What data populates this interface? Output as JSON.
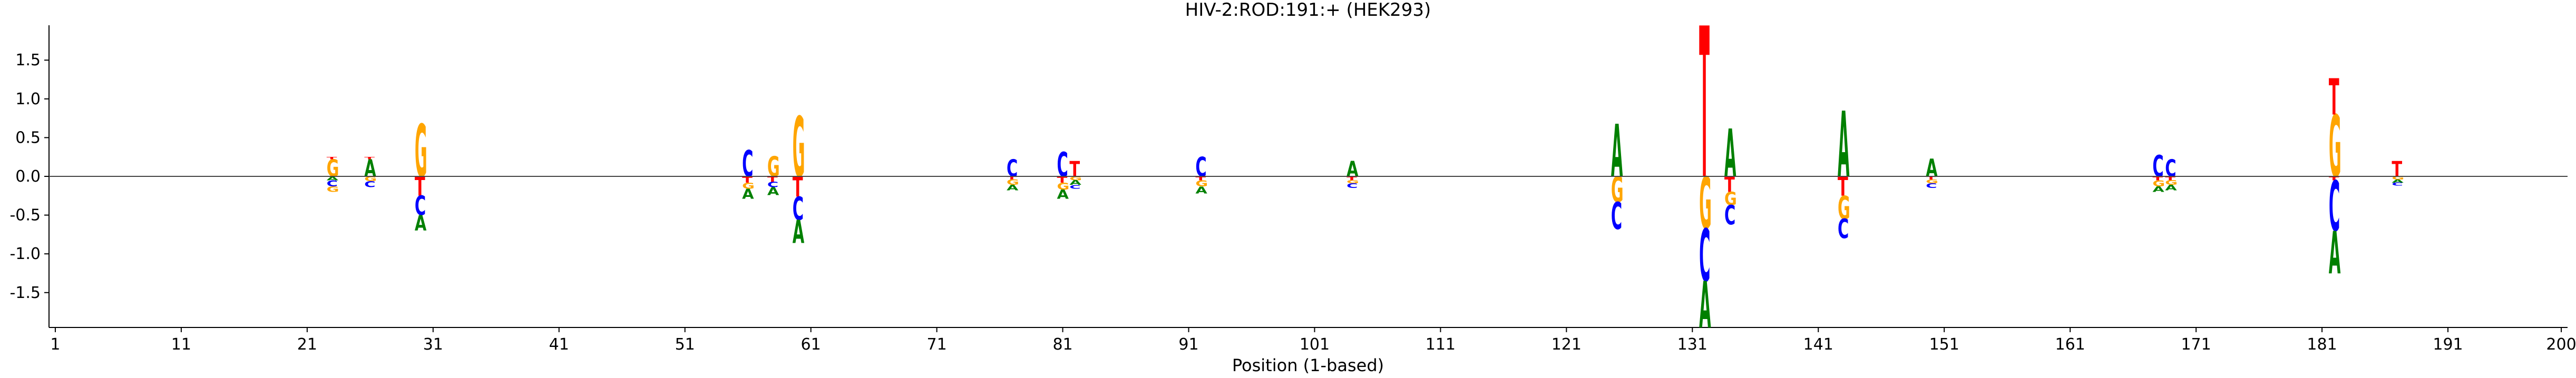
{
  "chart_data": {
    "type": "logo",
    "title": "HIV-2:ROD:191:+  (HEK293)",
    "xlabel": "Position (1-based)",
    "ylabel": "",
    "xlim": [
      0.5,
      200.5
    ],
    "ylim": [
      -1.95,
      1.95
    ],
    "xticks": [
      1,
      11,
      21,
      31,
      41,
      51,
      61,
      71,
      81,
      91,
      101,
      111,
      121,
      131,
      141,
      151,
      161,
      171,
      181,
      191,
      200
    ],
    "yticks": [
      -1.5,
      -1.0,
      -0.5,
      0.0,
      0.5,
      1.0,
      1.5
    ],
    "zero_line": true,
    "colors": {
      "A": "#008000",
      "C": "#0000ff",
      "G": "#ffa500",
      "T": "#ff0000"
    },
    "positions": [
      {
        "x": 23,
        "stack": [
          [
            "G",
            0.22
          ],
          [
            "T",
            0.03
          ],
          [
            "A",
            -0.05
          ],
          [
            "C",
            -0.08
          ],
          [
            "G",
            -0.07
          ]
        ]
      },
      {
        "x": 26,
        "stack": [
          [
            "A",
            0.22
          ],
          [
            "T",
            0.03
          ],
          [
            "G",
            -0.06
          ],
          [
            "C",
            -0.08
          ]
        ]
      },
      {
        "x": 30,
        "stack": [
          [
            "G",
            0.68
          ],
          [
            "T",
            -0.25
          ],
          [
            "C",
            -0.25
          ],
          [
            "A",
            -0.2
          ]
        ]
      },
      {
        "x": 56,
        "stack": [
          [
            "C",
            0.34
          ],
          [
            "T",
            -0.08
          ],
          [
            "G",
            -0.08
          ],
          [
            "A",
            -0.13
          ]
        ]
      },
      {
        "x": 58,
        "stack": [
          [
            "G",
            0.26
          ],
          [
            "T",
            -0.07
          ],
          [
            "C",
            -0.07
          ],
          [
            "A",
            -0.1
          ]
        ]
      },
      {
        "x": 60,
        "stack": [
          [
            "G",
            0.78
          ],
          [
            "T",
            -0.26
          ],
          [
            "C",
            -0.3
          ],
          [
            "A",
            -0.3
          ]
        ]
      },
      {
        "x": 77,
        "stack": [
          [
            "C",
            0.22
          ],
          [
            "T",
            -0.04
          ],
          [
            "G",
            -0.07
          ],
          [
            "A",
            -0.07
          ]
        ]
      },
      {
        "x": 81,
        "stack": [
          [
            "C",
            0.32
          ],
          [
            "T",
            -0.08
          ],
          [
            "G",
            -0.09
          ],
          [
            "A",
            -0.12
          ]
        ]
      },
      {
        "x": 82,
        "stack": [
          [
            "T",
            0.2
          ],
          [
            "G",
            -0.05
          ],
          [
            "A",
            -0.06
          ],
          [
            "C",
            -0.05
          ]
        ]
      },
      {
        "x": 92,
        "stack": [
          [
            "C",
            0.25
          ],
          [
            "T",
            -0.05
          ],
          [
            "G",
            -0.08
          ],
          [
            "A",
            -0.09
          ]
        ]
      },
      {
        "x": 104,
        "stack": [
          [
            "A",
            0.2
          ],
          [
            "T",
            -0.05
          ],
          [
            "G",
            -0.04
          ],
          [
            "C",
            -0.06
          ]
        ]
      },
      {
        "x": 125,
        "stack": [
          [
            "A",
            0.68
          ],
          [
            "G",
            -0.33
          ],
          [
            "C",
            -0.35
          ]
        ]
      },
      {
        "x": 132,
        "stack": [
          [
            "T",
            1.95
          ],
          [
            "G",
            -0.67
          ],
          [
            "C",
            -0.68
          ],
          [
            "A",
            -0.6
          ]
        ]
      },
      {
        "x": 134,
        "stack": [
          [
            "A",
            0.62
          ],
          [
            "T",
            -0.2
          ],
          [
            "G",
            -0.17
          ],
          [
            "C",
            -0.25
          ]
        ]
      },
      {
        "x": 143,
        "stack": [
          [
            "A",
            0.85
          ],
          [
            "T",
            -0.25
          ],
          [
            "G",
            -0.3
          ],
          [
            "C",
            -0.25
          ]
        ]
      },
      {
        "x": 150,
        "stack": [
          [
            "A",
            0.23
          ],
          [
            "T",
            -0.04
          ],
          [
            "G",
            -0.05
          ],
          [
            "C",
            -0.06
          ]
        ]
      },
      {
        "x": 168,
        "stack": [
          [
            "C",
            0.28
          ],
          [
            "T",
            -0.05
          ],
          [
            "G",
            -0.08
          ],
          [
            "A",
            -0.07
          ]
        ]
      },
      {
        "x": 169,
        "stack": [
          [
            "C",
            0.22
          ],
          [
            "T",
            -0.05
          ],
          [
            "G",
            -0.06
          ],
          [
            "A",
            -0.07
          ]
        ]
      },
      {
        "x": 182,
        "stack": [
          [
            "G",
            0.8
          ],
          [
            "T",
            0.47
          ],
          [
            "T",
            -0.05
          ],
          [
            "C",
            -0.65
          ],
          [
            "A",
            -0.55
          ]
        ]
      },
      {
        "x": 187,
        "stack": [
          [
            "T",
            0.2
          ],
          [
            "G",
            -0.04
          ],
          [
            "A",
            -0.04
          ],
          [
            "C",
            -0.04
          ]
        ]
      }
    ]
  }
}
